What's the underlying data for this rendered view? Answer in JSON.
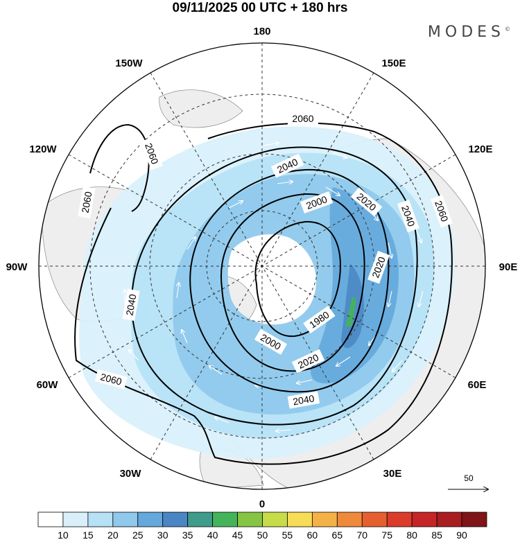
{
  "header": {
    "title": "09/11/2025  00 UTC  + 180 hrs",
    "brand": "MODES",
    "brand_mark": "©"
  },
  "map": {
    "projection": "north-polar-stereographic",
    "longitude_labels": [
      "180",
      "150E",
      "120E",
      "90E",
      "60E",
      "30E",
      "0",
      "30W",
      "60W",
      "90W",
      "120W",
      "150W"
    ],
    "contour_labels": [
      "2060",
      "2060",
      "2060",
      "2060",
      "2060",
      "2040",
      "2040",
      "2040",
      "2040",
      "2020",
      "2020",
      "2020",
      "2000",
      "2000",
      "1980"
    ],
    "vector_reference": "50"
  },
  "colorbar": {
    "ticks": [
      "10",
      "15",
      "20",
      "25",
      "30",
      "35",
      "40",
      "45",
      "50",
      "55",
      "60",
      "65",
      "70",
      "75",
      "80",
      "85",
      "90"
    ],
    "colors": [
      "#ffffff",
      "#d9f0fb",
      "#b7e1f5",
      "#8fc9ec",
      "#64a8dc",
      "#4a86c4",
      "#3f9b8a",
      "#44b35a",
      "#86c443",
      "#c6dc48",
      "#f6dd55",
      "#f4b246",
      "#ee8a3a",
      "#e6602f",
      "#db3b2b",
      "#c52526",
      "#a91d20",
      "#7f1518"
    ]
  }
}
